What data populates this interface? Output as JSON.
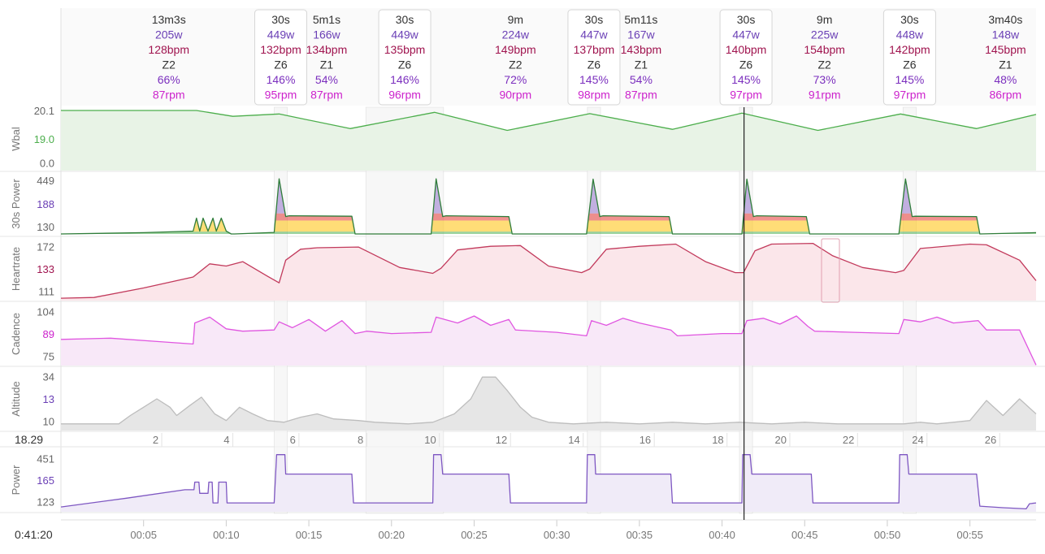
{
  "colors": {
    "wbal": "#4cae4c",
    "wbal_fill": "#e8f3e6",
    "power30": "#2f7d3a",
    "heartrate": "#c23a5c",
    "hr_fill": "#fbe6ea",
    "cadence": "#e055e0",
    "cad_fill": "#f8e8f8",
    "altitude": "#bdbdbd",
    "alt_fill": "#e6e6e6",
    "power": "#7e57c2",
    "power_fill": "#f0ebf8",
    "watts_text": "#6a3fb5",
    "hr_text": "#a0144f",
    "cad_text": "#cc22cc",
    "pct_text": "#7b2fbe",
    "zone_z1": "#4caf50",
    "zone_z2": "#ffc107",
    "zone_z3": "#ff7043",
    "zone_z4": "#e53935",
    "zone_z5": "#9575cd",
    "cursor": "#222222"
  },
  "segments": [
    {
      "dur": "13m3s",
      "watts": "205w",
      "hr": "128bpm",
      "zone": "Z2",
      "pct": "66%",
      "rpm": "87rpm",
      "start_min": 0.0,
      "end_min": 13.05,
      "boxed": false
    },
    {
      "dur": "30s",
      "watts": "449w",
      "hr": "132bpm",
      "zone": "Z6",
      "pct": "146%",
      "rpm": "95rpm",
      "start_min": 13.05,
      "end_min": 13.55,
      "boxed": true
    },
    {
      "dur": "5m1s",
      "watts": "166w",
      "hr": "134bpm",
      "zone": "Z1",
      "pct": "54%",
      "rpm": "87rpm",
      "start_min": 13.55,
      "end_min": 18.6,
      "boxed": false
    },
    {
      "dur": "30s",
      "watts": "449w",
      "hr": "135bpm",
      "zone": "Z6",
      "pct": "146%",
      "rpm": "96rpm",
      "start_min": 18.6,
      "end_min": 23.0,
      "boxed": true
    },
    {
      "dur": "9m",
      "watts": "224w",
      "hr": "149bpm",
      "zone": "Z2",
      "pct": "72%",
      "rpm": "90rpm",
      "start_min": 23.0,
      "end_min": 32.0,
      "boxed": false
    },
    {
      "dur": "30s",
      "watts": "447w",
      "hr": "137bpm",
      "zone": "Z6",
      "pct": "145%",
      "rpm": "98rpm",
      "start_min": 32.0,
      "end_min": 32.5,
      "boxed": true
    },
    {
      "dur": "5m11s",
      "watts": "167w",
      "hr": "143bpm",
      "zone": "Z1",
      "pct": "54%",
      "rpm": "87rpm",
      "start_min": 32.5,
      "end_min": 37.7,
      "boxed": false
    },
    {
      "dur": "30s",
      "watts": "447w",
      "hr": "140bpm",
      "zone": "Z6",
      "pct": "145%",
      "rpm": "97rpm",
      "start_min": 41.2,
      "end_min": 41.7,
      "boxed": true
    },
    {
      "dur": "9m",
      "watts": "225w",
      "hr": "154bpm",
      "zone": "Z2",
      "pct": "73%",
      "rpm": "91rpm",
      "start_min": 41.7,
      "end_min": 50.7,
      "boxed": false
    },
    {
      "dur": "30s",
      "watts": "448w",
      "hr": "142bpm",
      "zone": "Z6",
      "pct": "145%",
      "rpm": "97rpm",
      "start_min": 51.1,
      "end_min": 51.6,
      "boxed": true
    },
    {
      "dur": "3m40s",
      "watts": "148w",
      "hr": "145bpm",
      "zone": "Z1",
      "pct": "48%",
      "rpm": "86rpm",
      "start_min": 55.3,
      "end_min": 59.0,
      "boxed": false
    }
  ],
  "panels": {
    "wbal": {
      "label": "Wbal",
      "ticks": [
        "20.1",
        "0.0"
      ],
      "current": "19.0"
    },
    "power30": {
      "label": "30s Power",
      "ticks": [
        "449",
        "130"
      ],
      "current": "188"
    },
    "heartrate": {
      "label": "Heartrate",
      "ticks": [
        "172",
        "111"
      ],
      "current": "133"
    },
    "cadence": {
      "label": "Cadence",
      "ticks": [
        "104",
        "75"
      ],
      "current": "89"
    },
    "altitude": {
      "label": "Altitude",
      "ticks": [
        "34",
        "10"
      ],
      "current": "13"
    },
    "power": {
      "label": "Power",
      "ticks": [
        "451",
        "123"
      ],
      "current": "165"
    }
  },
  "distance_axis": {
    "readout": "18.29",
    "ticks": [
      "2",
      "4",
      "6",
      "8",
      "10",
      "12",
      "14",
      "16",
      "18",
      "20",
      "22",
      "24",
      "26"
    ]
  },
  "time_axis": {
    "readout": "0:41:20",
    "ticks": [
      "00:05",
      "00:10",
      "00:15",
      "00:20",
      "00:25",
      "00:30",
      "00:35",
      "00:40",
      "00:45",
      "00:50",
      "00:55"
    ]
  },
  "chart_data": {
    "type": "line",
    "x_unit": "minutes",
    "x_range": [
      0,
      59
    ],
    "cursor_x": 41.33,
    "distance_ticks": [
      {
        "km": 2,
        "min": 6.1
      },
      {
        "km": 4,
        "min": 10.4
      },
      {
        "km": 6,
        "min": 14.4
      },
      {
        "km": 8,
        "min": 18.5
      },
      {
        "km": 10,
        "min": 22.9
      },
      {
        "km": 12,
        "min": 27.2
      },
      {
        "km": 14,
        "min": 31.6
      },
      {
        "km": 16,
        "min": 35.9
      },
      {
        "km": 18,
        "min": 40.3
      },
      {
        "km": 20,
        "min": 44.1
      },
      {
        "km": 22,
        "min": 48.2
      },
      {
        "km": 24,
        "min": 52.4
      },
      {
        "km": 26,
        "min": 56.8
      }
    ],
    "time_ticks": [
      5,
      10,
      15,
      20,
      25,
      30,
      35,
      40,
      45,
      50,
      55
    ],
    "series": [
      {
        "name": "Wbal",
        "ylim": [
          0,
          22
        ],
        "x": [
          0,
          8.2,
          10.4,
          13.2,
          17.5,
          22.6,
          27.0,
          32.0,
          37.0,
          41.2,
          45.8,
          50.8,
          55.4,
          59.0
        ],
        "y": [
          22,
          22,
          19.8,
          20.7,
          15.2,
          21.3,
          14.5,
          20.8,
          14.9,
          21.0,
          14.5,
          20.7,
          15.2,
          20.5
        ]
      },
      {
        "name": "30s Power",
        "ylim": [
          100,
          470
        ],
        "x": [
          0,
          5.0,
          8.0,
          8.2,
          8.4,
          8.6,
          8.9,
          9.2,
          9.4,
          9.7,
          10.0,
          10.3,
          10.5,
          12.9,
          13.2,
          13.6,
          13.8,
          17.6,
          17.8,
          22.4,
          22.7,
          23.1,
          23.3,
          27.1,
          27.3,
          31.8,
          32.2,
          32.6,
          32.8,
          36.8,
          37.0,
          41.2,
          41.5,
          41.9,
          42.1,
          45.1,
          45.3,
          50.7,
          51.1,
          51.5,
          51.7,
          55.4,
          55.6,
          59.0
        ],
        "y": [
          100,
          108,
          118,
          200,
          118,
          200,
          118,
          200,
          118,
          200,
          118,
          100,
          100,
          110,
          449,
          210,
          215,
          212,
          100,
          100,
          449,
          210,
          215,
          210,
          100,
          100,
          447,
          210,
          215,
          210,
          100,
          100,
          447,
          210,
          215,
          210,
          100,
          100,
          448,
          210,
          212,
          210,
          100,
          108
        ]
      },
      {
        "name": "Heartrate",
        "ylim": [
          95,
          175
        ],
        "x": [
          0,
          2.0,
          5.0,
          8.0,
          9.0,
          10.0,
          11.0,
          12.5,
          13.2,
          13.6,
          14.5,
          15.5,
          18.0,
          20.5,
          22.5,
          23.0,
          24.0,
          26.0,
          27.8,
          29.5,
          31.5,
          32.0,
          33.0,
          35.0,
          37.2,
          39.0,
          40.8,
          41.3,
          42.0,
          43.0,
          45.5,
          46.7,
          48.5,
          50.5,
          51.0,
          52.0,
          55.0,
          56.0,
          58.0,
          59.0
        ],
        "y": [
          96,
          97,
          110,
          125,
          143,
          140,
          146,
          126,
          117,
          148,
          163,
          165,
          166,
          138,
          130,
          137,
          162,
          167,
          168,
          140,
          131,
          136,
          163,
          167,
          170,
          146,
          131,
          131,
          161,
          170,
          171,
          154,
          138,
          131,
          134,
          164,
          170,
          169,
          148,
          120
        ]
      },
      {
        "name": "Cadence",
        "ylim": [
          60,
          110
        ],
        "x": [
          0,
          3,
          6,
          8.0,
          8.1,
          9,
          10,
          11,
          12.9,
          13.2,
          14,
          15,
          16,
          17,
          17.8,
          18.5,
          20.0,
          22.4,
          22.7,
          24,
          25,
          26,
          27.1,
          27.5,
          30,
          31.8,
          32.1,
          33,
          34,
          35,
          36.9,
          37.3,
          40,
          41.2,
          41.5,
          42.5,
          43.5,
          44.5,
          45.2,
          45.6,
          48,
          50.7,
          51.0,
          52,
          53,
          54,
          55.5,
          56,
          58,
          59
        ],
        "y": [
          81,
          82,
          79,
          77,
          95,
          100,
          90,
          88,
          89,
          96,
          91,
          98,
          88,
          97,
          86,
          88,
          86,
          87,
          100,
          95,
          101,
          93,
          98,
          89,
          87,
          84,
          97,
          93,
          99,
          95,
          89,
          84,
          86,
          86,
          97,
          99,
          94,
          101,
          92,
          88,
          87,
          86,
          98,
          96,
          100,
          95,
          97,
          89,
          89,
          59
        ]
      },
      {
        "name": "Altitude",
        "ylim": [
          5,
          40
        ],
        "x": [
          0,
          2.0,
          3.5,
          4.2,
          5.0,
          5.8,
          6.6,
          7.0,
          7.8,
          8.5,
          9.3,
          10.0,
          10.8,
          11.6,
          12.5,
          13.5,
          14.5,
          15.5,
          16.5,
          18.0,
          19.0,
          21.0,
          22.5,
          23.8,
          24.8,
          25.5,
          26.3,
          27.0,
          27.8,
          28.5,
          29.5,
          31.0,
          33.0,
          35.0,
          37.0,
          39.0,
          41.0,
          43.0,
          45.0,
          47.0,
          49.0,
          51.0,
          52.0,
          53.0,
          54.0,
          55.0,
          56.0,
          57.0,
          58.0,
          59.0
        ],
        "y": [
          8,
          8,
          8,
          13,
          18,
          23,
          18,
          13,
          19,
          24,
          14,
          10,
          18,
          14,
          10,
          9,
          12,
          14,
          11,
          10,
          9,
          8,
          9,
          14,
          23,
          36,
          36,
          28,
          18,
          12,
          9,
          8,
          9,
          8,
          9,
          8,
          9,
          8,
          9,
          8,
          8,
          8,
          9,
          8,
          9,
          10,
          22,
          13,
          23,
          14
        ]
      },
      {
        "name": "Power",
        "ylim": [
          105,
          470
        ],
        "x": [
          0,
          4.0,
          7.5,
          8.05,
          8.1,
          8.35,
          8.4,
          8.9,
          8.95,
          9.15,
          9.2,
          9.5,
          9.55,
          9.75,
          10.0,
          10.05,
          10.5,
          10.55,
          12.9,
          13.05,
          13.55,
          13.6,
          17.6,
          17.7,
          22.5,
          22.55,
          23.0,
          23.1,
          27.1,
          27.2,
          31.8,
          31.85,
          32.3,
          32.35,
          36.9,
          37.0,
          41.2,
          41.25,
          41.7,
          41.8,
          45.4,
          45.5,
          50.7,
          50.75,
          51.2,
          51.3,
          55.4,
          55.6,
          57.0,
          58.4,
          58.6,
          59.0
        ],
        "y": [
          125,
          180,
          232,
          232,
          280,
          280,
          210,
          210,
          280,
          280,
          150,
          150,
          280,
          280,
          280,
          150,
          150,
          150,
          150,
          451,
          451,
          330,
          330,
          150,
          150,
          451,
          451,
          330,
          330,
          150,
          150,
          451,
          451,
          330,
          330,
          150,
          150,
          451,
          451,
          330,
          330,
          150,
          150,
          451,
          451,
          330,
          330,
          130,
          120,
          113,
          145,
          150
        ]
      }
    ]
  }
}
